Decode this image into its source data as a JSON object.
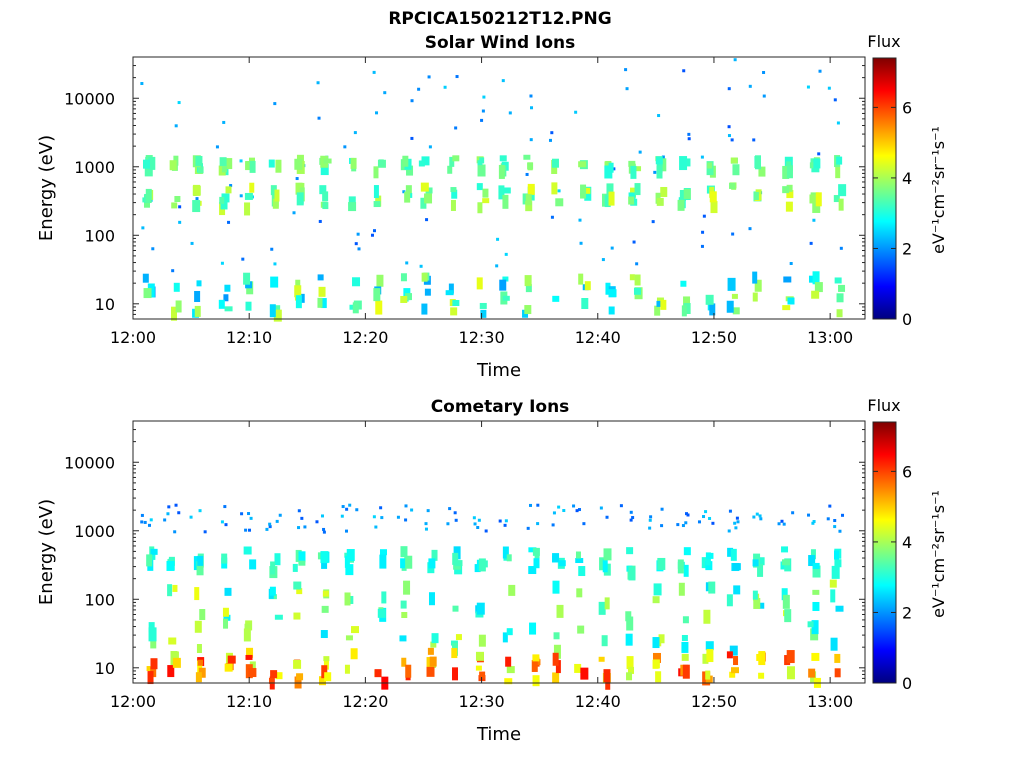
{
  "figure_title": "RPCICA150212T12.PNG",
  "colormap": [
    "#00007f",
    "#0000ff",
    "#007fff",
    "#00ffff",
    "#7fff7f",
    "#ffff00",
    "#ff7f00",
    "#ff0000",
    "#7f0000"
  ],
  "chart_data": [
    {
      "type": "heatmap",
      "title": "Solar Wind Ions",
      "xlabel": "Time",
      "ylabel": "Energy (eV)",
      "x_range": [
        "12:00",
        "13:03"
      ],
      "x_ticks": [
        "12:00",
        "12:10",
        "12:20",
        "12:30",
        "12:40",
        "12:50",
        "13:00"
      ],
      "y_scale": "log",
      "y_range": [
        6,
        40000
      ],
      "y_ticks": [
        "10",
        "100",
        "1000",
        "10000"
      ],
      "colorbar": {
        "title": "Flux",
        "label": "eV⁻¹cm⁻²sr⁻¹s⁻¹",
        "range": [
          0,
          7.4
        ],
        "ticks": [
          "0",
          "2",
          "4",
          "6"
        ]
      },
      "features": [
        {
          "energy_eV": [
            30,
            40000
          ],
          "flux": [
            1.5,
            2.5
          ],
          "note": "sparse"
        },
        {
          "energy_eV": [
            1000,
            1500
          ],
          "flux": [
            3,
            4
          ]
        },
        {
          "energy_eV": [
            300,
            600
          ],
          "flux": [
            3,
            4.5
          ]
        },
        {
          "energy_eV": [
            8,
            30
          ],
          "flux": [
            2,
            4.5
          ]
        }
      ]
    },
    {
      "type": "heatmap",
      "title": "Cometary Ions",
      "xlabel": "Time",
      "ylabel": "Energy (eV)",
      "x_range": [
        "12:00",
        "13:03"
      ],
      "x_ticks": [
        "12:00",
        "12:10",
        "12:20",
        "12:30",
        "12:40",
        "12:50",
        "13:00"
      ],
      "y_scale": "log",
      "y_range": [
        6,
        40000
      ],
      "y_ticks": [
        "10",
        "100",
        "1000",
        "10000"
      ],
      "colorbar": {
        "title": "Flux",
        "label": "eV⁻¹cm⁻²sr⁻¹s⁻¹",
        "range": [
          0,
          7.4
        ],
        "ticks": [
          "0",
          "2",
          "4",
          "6"
        ]
      },
      "features": [
        {
          "energy_eV": [
            1000,
            2500
          ],
          "flux": [
            1.5,
            2.5
          ],
          "note": "sparse"
        },
        {
          "energy_eV": [
            300,
            600
          ],
          "flux": [
            2.5,
            3.5
          ]
        },
        {
          "energy_eV": [
            20,
            200
          ],
          "flux": [
            2.5,
            4.5
          ]
        },
        {
          "energy_eV": [
            7,
            20
          ],
          "flux": [
            4,
            6.5
          ]
        }
      ]
    }
  ]
}
